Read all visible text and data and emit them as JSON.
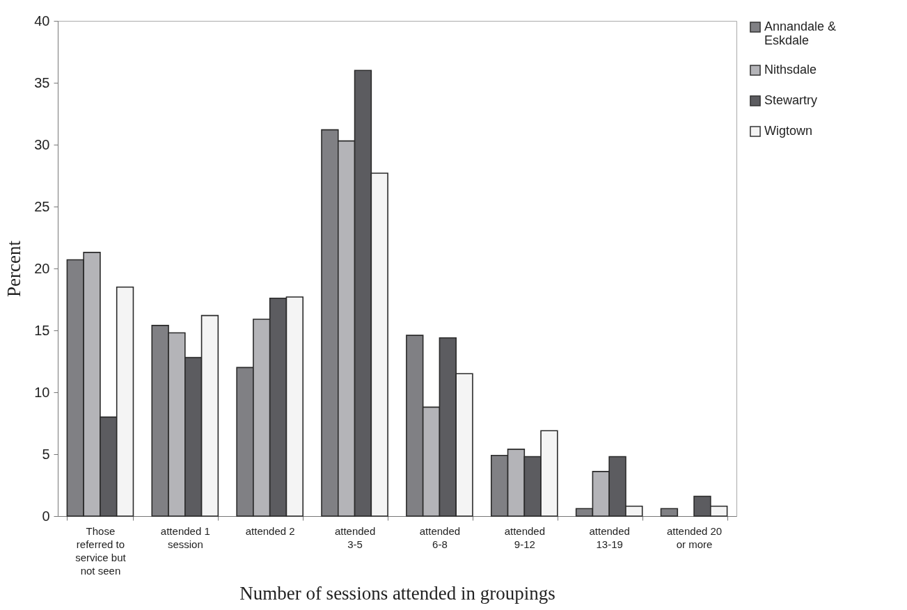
{
  "chart_data": {
    "type": "bar",
    "xlabel": "Number of sessions attended in groupings",
    "ylabel": "Percent",
    "categories": [
      "Those referred to service but not seen",
      "attended 1 session",
      "attended 2",
      "attended 3-5",
      "attended 6-8",
      "attended 9-12",
      "attended 13-19",
      "attended 20 or more"
    ],
    "series": [
      {
        "name": "Annandale & Eskdale",
        "color": "#808084",
        "values": [
          20.7,
          15.4,
          12.0,
          31.2,
          14.6,
          4.9,
          0.6,
          0.6
        ]
      },
      {
        "name": "Nithsdale",
        "color": "#b4b4b8",
        "values": [
          21.3,
          14.8,
          15.9,
          30.3,
          8.8,
          5.4,
          3.6,
          null
        ]
      },
      {
        "name": "Stewartry",
        "color": "#5c5c60",
        "values": [
          8.0,
          12.8,
          17.6,
          36.0,
          14.4,
          4.8,
          4.8,
          1.6
        ]
      },
      {
        "name": "Wigtown",
        "color": "#f4f4f4",
        "values": [
          18.5,
          16.2,
          17.7,
          27.7,
          11.5,
          6.9,
          0.8,
          0.8
        ]
      }
    ],
    "ylim": [
      0,
      40
    ],
    "yticks": [
      0,
      5,
      10,
      15,
      20,
      25,
      30,
      35,
      40
    ],
    "grid": false,
    "legend": "right"
  }
}
